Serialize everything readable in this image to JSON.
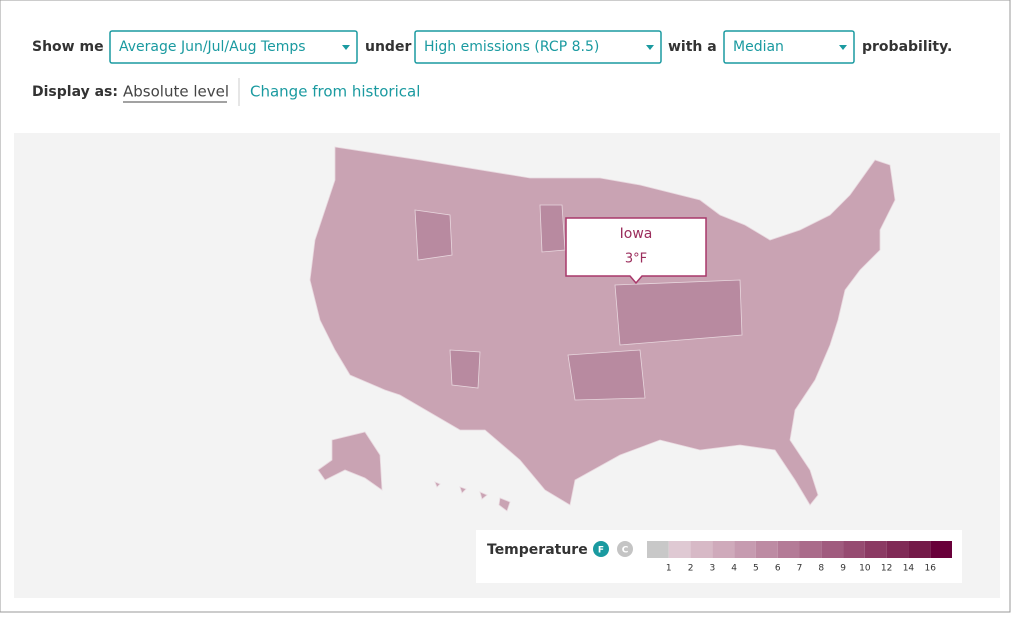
{
  "controls": {
    "show_me_label": "Show me",
    "variable": "Average Jun/Jul/Aug Temps",
    "under_label": "under",
    "scenario": "High emissions (RCP 8.5)",
    "with_label": "with a",
    "probability": "Median",
    "suffix": "probability.",
    "display_label": "Display as:",
    "display_options": [
      "Absolute level",
      "Change from historical"
    ]
  },
  "tooltip": {
    "region": "Iowa",
    "value": "3°F"
  },
  "legend": {
    "title": "Temperature",
    "units": [
      "F",
      "C"
    ],
    "selected_unit": "F",
    "colors": [
      "#c8c8c8",
      "#dfc9d3",
      "#d7b9c6",
      "#cfaabb",
      "#c69bb0",
      "#bd8ba3",
      "#b47b97",
      "#aa6b8a",
      "#a05b7e",
      "#964b71",
      "#8b3a63",
      "#802a56",
      "#741a48",
      "#69003a"
    ],
    "labels": [
      "1",
      "2",
      "3",
      "4",
      "5",
      "6",
      "7",
      "8",
      "9",
      "10",
      "12",
      "14",
      "16"
    ]
  }
}
